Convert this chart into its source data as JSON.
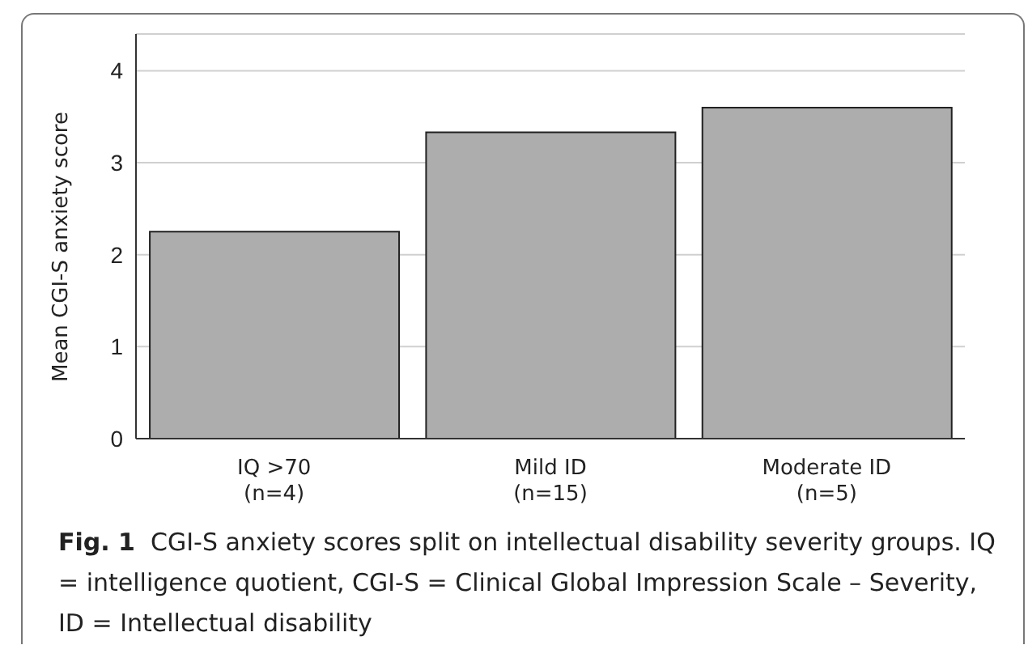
{
  "chart_data": {
    "type": "bar",
    "ylabel": "Mean CGI-S anxiety score",
    "categories": [
      "IQ >70\n(n=4)",
      "Mild ID\n(n=15)",
      "Moderate ID\n(n=5)"
    ],
    "values": [
      2.25,
      3.33,
      3.6
    ],
    "color": "#adadad",
    "ylim": [
      0,
      4.4
    ],
    "yticks": [
      0,
      1,
      2,
      3,
      4
    ],
    "grid": "y",
    "annotations": [
      "Fig. 1  CGI-S anxiety scores split on intellectual disability severity groups. IQ = intelligence quotient, CGI-S = Clinical Global Impression Scale – Severity, ID = Intellectual disability"
    ]
  }
}
